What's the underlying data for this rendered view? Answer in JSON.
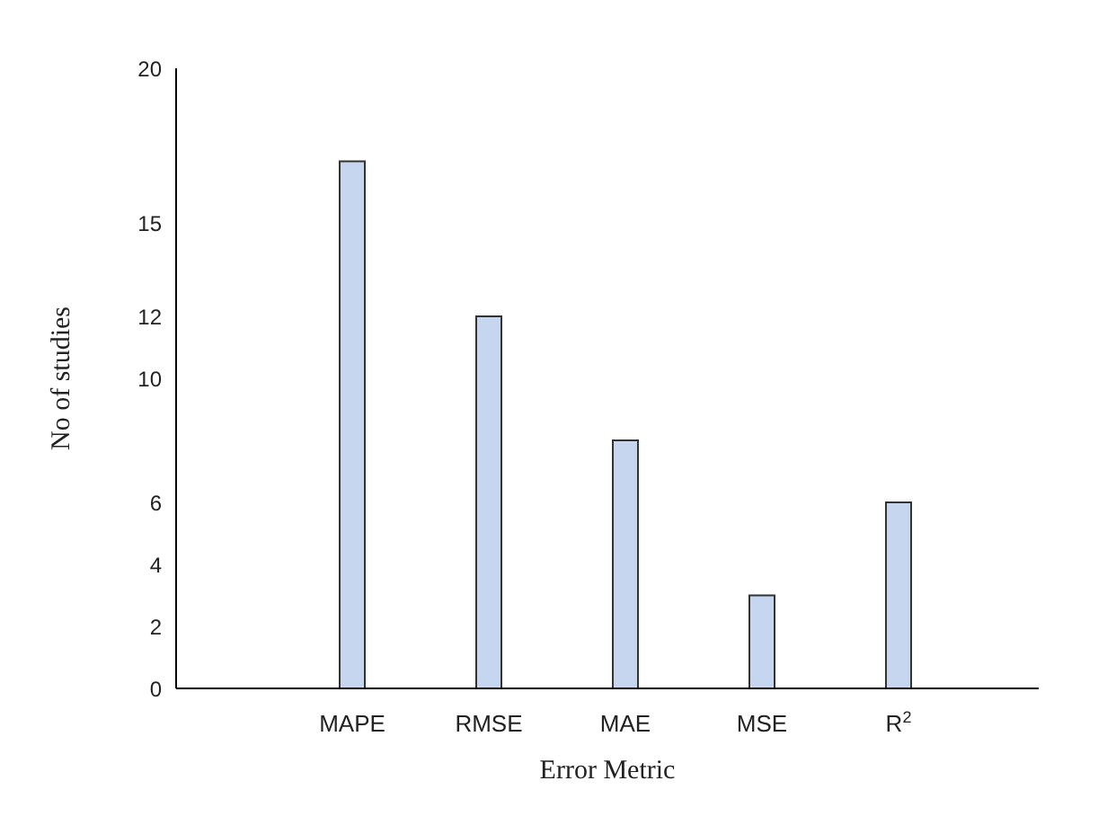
{
  "chart_data": {
    "type": "bar",
    "xlabel": "Error Metric",
    "ylabel": "No of studies",
    "categories": [
      "MAPE",
      "RMSE",
      "MAE",
      "MSE",
      "R$^{2}$"
    ],
    "values": [
      17,
      12,
      8,
      3,
      6
    ],
    "color": "#c6d6ef",
    "ylim": [
      0,
      20
    ],
    "yticks": [
      0,
      2,
      4,
      6,
      10,
      12,
      15,
      20
    ]
  }
}
